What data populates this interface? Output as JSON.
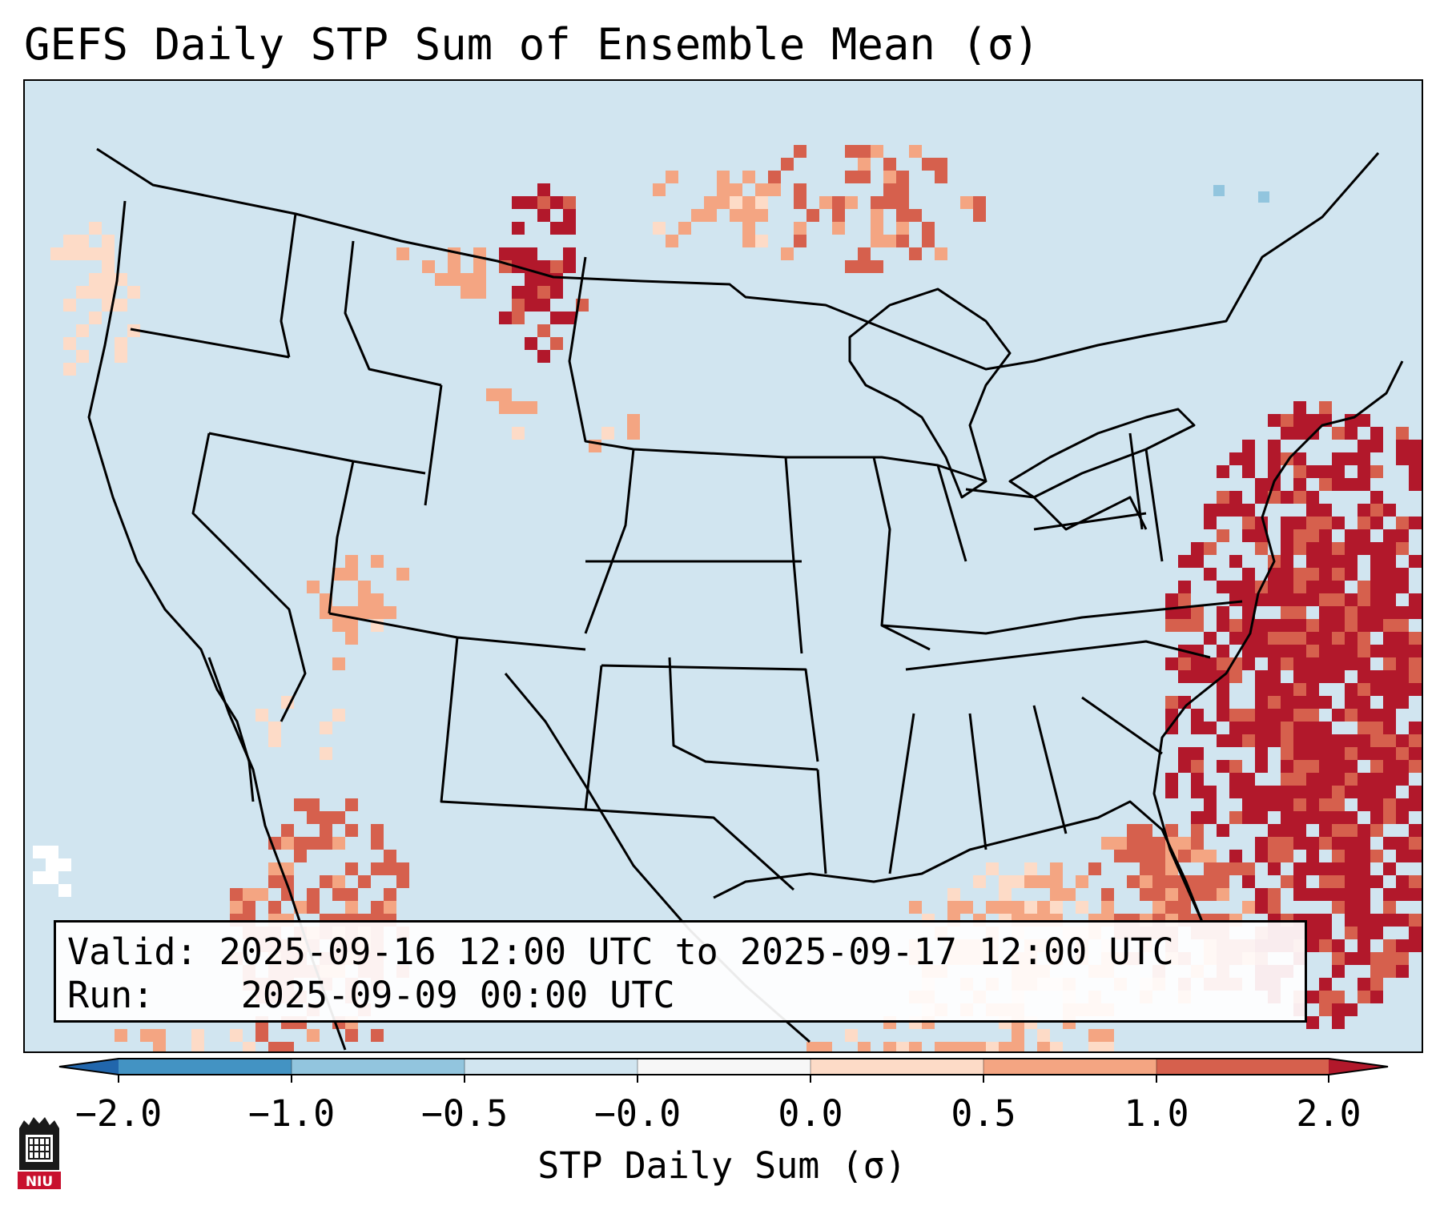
{
  "title": "GEFS Daily STP Sum of Ensemble Mean (σ)",
  "info": {
    "valid_label": "Valid:",
    "valid_value": "2025-09-16 12:00 UTC to 2025-09-17 12:00 UTC",
    "run_label": "Run:",
    "run_value": "2025-09-09 00:00 UTC"
  },
  "logo": {
    "text": "NIU",
    "color": "#c8102e"
  },
  "colors": {
    "ocean_background": "#d1e5f0",
    "boundary": "#000000",
    "missing": "#ffffff"
  },
  "colorbar": {
    "label": "STP Daily Sum (σ)",
    "ticks": [
      "−2.0",
      "−1.0",
      "−0.5",
      "−0.0",
      "0.0",
      "0.5",
      "1.0",
      "2.0"
    ],
    "colors": [
      "#2166ac",
      "#4393c3",
      "#92c5de",
      "#d1e5f0",
      "#f7f7f7",
      "#fddbc7",
      "#f4a582",
      "#d6604d",
      "#b2182b"
    ],
    "extend": "both"
  }
}
